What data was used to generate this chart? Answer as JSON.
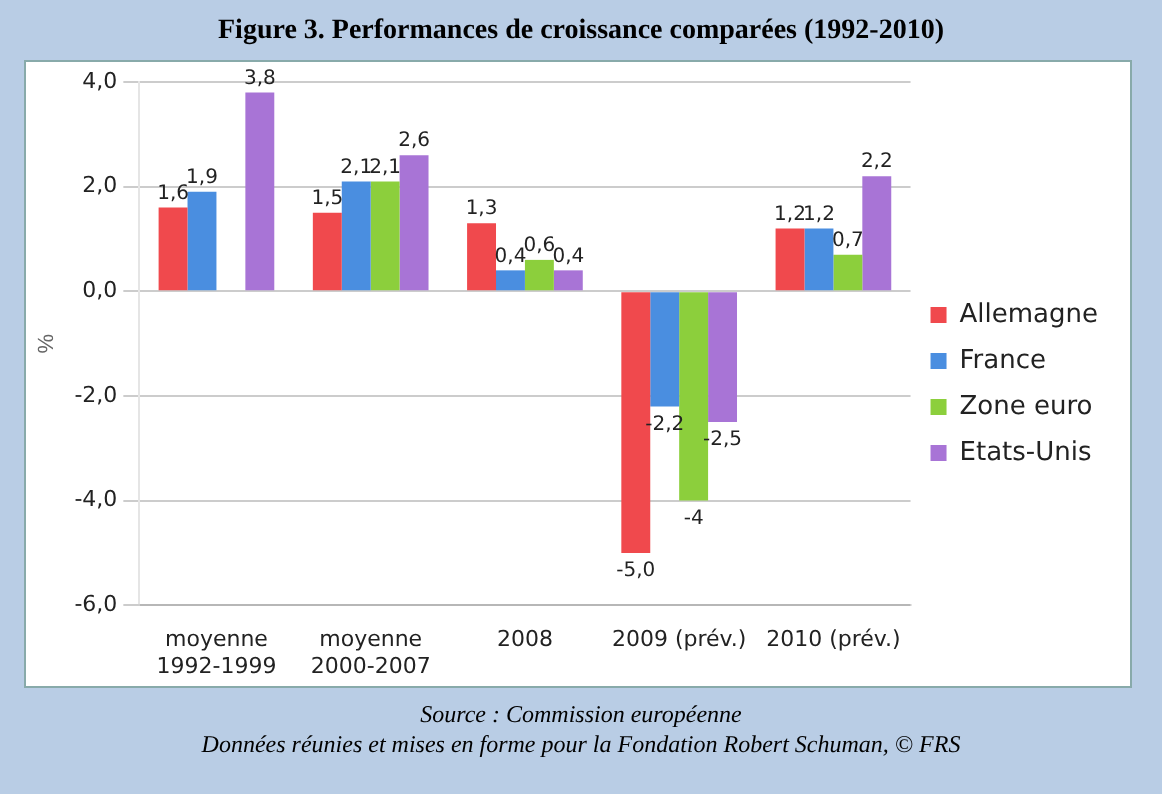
{
  "chart_data": {
    "type": "bar",
    "title": "Figure 3. Performances de croissance comparées (1992-2010)",
    "ylabel": "%",
    "categories": [
      "moyenne\n1992-1999",
      "moyenne\n2000-2007",
      "2008",
      "2009 (prév.)",
      "2010 (prév.)"
    ],
    "series": [
      {
        "name": "Allemagne",
        "color": "#f0494d",
        "values": [
          1.6,
          1.5,
          1.3,
          -5.0,
          1.2
        ],
        "value_labels": [
          "1,6",
          "1,5",
          "1,3",
          "-5,0",
          "1,2"
        ]
      },
      {
        "name": "France",
        "color": "#4a8ee0",
        "values": [
          1.9,
          2.1,
          0.4,
          -2.2,
          1.2
        ],
        "value_labels": [
          "1,9",
          "2,1",
          "0,4",
          "-2,2",
          "1,2"
        ]
      },
      {
        "name": "Zone euro",
        "color": "#8ccf3c",
        "values": [
          null,
          2.1,
          0.6,
          -4,
          0.7
        ],
        "value_labels": [
          null,
          "2,1",
          "0,6",
          "-4",
          "0,7"
        ]
      },
      {
        "name": "Etats-Unis",
        "color": "#a874d6",
        "values": [
          3.8,
          2.6,
          0.4,
          -2.5,
          2.2
        ],
        "value_labels": [
          "3,8",
          "2,6",
          "0,4",
          "-2,5",
          "2,2"
        ]
      }
    ],
    "ylim": [
      -6,
      4
    ],
    "yticks": [
      {
        "value": -6,
        "label": "-6,0"
      },
      {
        "value": -4,
        "label": "-4,0"
      },
      {
        "value": -2,
        "label": "-2,0"
      },
      {
        "value": 0,
        "label": "0,0"
      },
      {
        "value": 2,
        "label": "2,0"
      },
      {
        "value": 4,
        "label": "4,0"
      }
    ],
    "grid": "y",
    "legend": "right",
    "annotations": [
      "Source : Commission européenne",
      "Données réunies et mises en forme pour la Fondation Robert Schuman, © FRS"
    ]
  }
}
